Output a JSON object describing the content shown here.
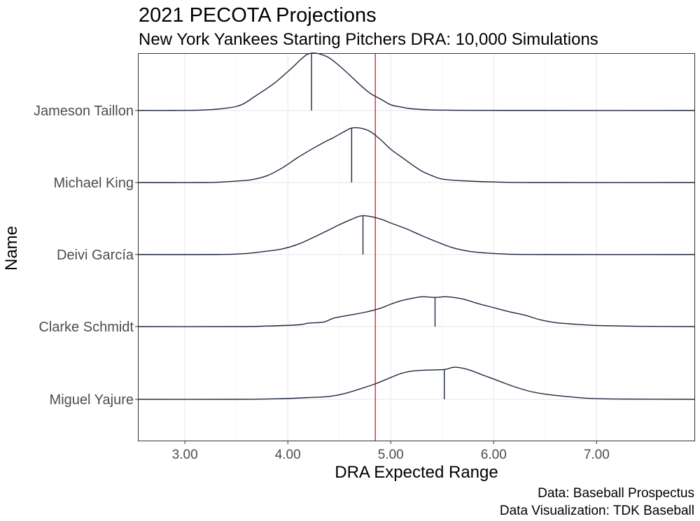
{
  "colors": {
    "density_line": "#1c2841",
    "reference_line": "#e0252b",
    "panel_border": "#333333",
    "grid_major": "#ebebeb",
    "grid_minor": "#f5f5f5",
    "tick_text": "#4d4d4d"
  },
  "chart_data": {
    "type": "ridgeline-density",
    "title": "2021 PECOTA Projections",
    "subtitle": "New York Yankees Starting Pitchers DRA: 10,000 Simulations",
    "xlabel": "DRA Expected Range",
    "ylabel": "Name",
    "xlim": [
      2.55,
      7.95
    ],
    "x_ticks": [
      3.0,
      4.0,
      5.0,
      6.0,
      7.0
    ],
    "x_tick_labels": [
      "3.00",
      "4.00",
      "5.00",
      "6.00",
      "7.00"
    ],
    "reference_line": {
      "x": 4.85,
      "color": "#e0252b"
    },
    "grid": true,
    "legend": "none",
    "caption": [
      "Data: Baseball Prospectus",
      "Data Visualization: TDK Baseball"
    ],
    "series": [
      {
        "name": "Jameson Taillon",
        "median": 4.23,
        "density": [
          [
            2.55,
            0
          ],
          [
            2.9,
            0
          ],
          [
            3.2,
            0.01
          ],
          [
            3.4,
            0.04
          ],
          [
            3.55,
            0.1
          ],
          [
            3.7,
            0.27
          ],
          [
            3.85,
            0.45
          ],
          [
            3.95,
            0.6
          ],
          [
            4.05,
            0.76
          ],
          [
            4.12,
            0.88
          ],
          [
            4.18,
            0.97
          ],
          [
            4.23,
            1.0
          ],
          [
            4.3,
            0.99
          ],
          [
            4.4,
            0.92
          ],
          [
            4.5,
            0.78
          ],
          [
            4.6,
            0.62
          ],
          [
            4.7,
            0.45
          ],
          [
            4.8,
            0.3
          ],
          [
            4.9,
            0.2
          ],
          [
            5.0,
            0.1
          ],
          [
            5.1,
            0.06
          ],
          [
            5.2,
            0.03
          ],
          [
            5.4,
            0.01
          ],
          [
            5.7,
            0.004
          ],
          [
            6.2,
            0
          ],
          [
            7.95,
            0
          ]
        ]
      },
      {
        "name": "Michael King",
        "median": 4.62,
        "density": [
          [
            2.55,
            0
          ],
          [
            3.2,
            0
          ],
          [
            3.45,
            0.02
          ],
          [
            3.65,
            0.05
          ],
          [
            3.8,
            0.12
          ],
          [
            3.95,
            0.26
          ],
          [
            4.1,
            0.44
          ],
          [
            4.25,
            0.6
          ],
          [
            4.35,
            0.7
          ],
          [
            4.45,
            0.79
          ],
          [
            4.55,
            0.89
          ],
          [
            4.62,
            0.95
          ],
          [
            4.7,
            0.95
          ],
          [
            4.8,
            0.89
          ],
          [
            4.9,
            0.75
          ],
          [
            5.0,
            0.58
          ],
          [
            5.1,
            0.45
          ],
          [
            5.2,
            0.32
          ],
          [
            5.3,
            0.2
          ],
          [
            5.4,
            0.12
          ],
          [
            5.5,
            0.06
          ],
          [
            5.7,
            0.03
          ],
          [
            6.0,
            0.01
          ],
          [
            6.4,
            0
          ],
          [
            7.95,
            0
          ]
        ]
      },
      {
        "name": "Deivi García",
        "median": 4.73,
        "density": [
          [
            2.55,
            0
          ],
          [
            3.3,
            0
          ],
          [
            3.6,
            0.02
          ],
          [
            3.8,
            0.06
          ],
          [
            3.95,
            0.1
          ],
          [
            4.1,
            0.18
          ],
          [
            4.25,
            0.3
          ],
          [
            4.4,
            0.43
          ],
          [
            4.5,
            0.52
          ],
          [
            4.6,
            0.6
          ],
          [
            4.7,
            0.67
          ],
          [
            4.78,
            0.67
          ],
          [
            4.9,
            0.62
          ],
          [
            5.0,
            0.55
          ],
          [
            5.15,
            0.45
          ],
          [
            5.3,
            0.33
          ],
          [
            5.45,
            0.22
          ],
          [
            5.6,
            0.12
          ],
          [
            5.75,
            0.06
          ],
          [
            5.9,
            0.03
          ],
          [
            6.1,
            0.01
          ],
          [
            6.5,
            0
          ],
          [
            7.95,
            0
          ]
        ]
      },
      {
        "name": "Clarke Schmidt",
        "median": 5.43,
        "density": [
          [
            2.55,
            0
          ],
          [
            3.5,
            0
          ],
          [
            3.8,
            0.01
          ],
          [
            4.1,
            0.03
          ],
          [
            4.2,
            0.06
          ],
          [
            4.35,
            0.08
          ],
          [
            4.45,
            0.15
          ],
          [
            4.6,
            0.2
          ],
          [
            4.75,
            0.25
          ],
          [
            4.9,
            0.32
          ],
          [
            5.0,
            0.39
          ],
          [
            5.1,
            0.45
          ],
          [
            5.2,
            0.49
          ],
          [
            5.3,
            0.52
          ],
          [
            5.43,
            0.51
          ],
          [
            5.55,
            0.52
          ],
          [
            5.7,
            0.48
          ],
          [
            5.85,
            0.4
          ],
          [
            6.0,
            0.33
          ],
          [
            6.15,
            0.26
          ],
          [
            6.3,
            0.2
          ],
          [
            6.45,
            0.12
          ],
          [
            6.6,
            0.07
          ],
          [
            6.8,
            0.04
          ],
          [
            7.0,
            0.02
          ],
          [
            7.4,
            0.005
          ],
          [
            7.95,
            0
          ]
        ]
      },
      {
        "name": "Miguel Yajure",
        "median": 5.52,
        "density": [
          [
            2.55,
            0
          ],
          [
            3.5,
            0
          ],
          [
            3.9,
            0.01
          ],
          [
            4.2,
            0.03
          ],
          [
            4.4,
            0.05
          ],
          [
            4.55,
            0.1
          ],
          [
            4.7,
            0.18
          ],
          [
            4.85,
            0.27
          ],
          [
            5.0,
            0.38
          ],
          [
            5.1,
            0.45
          ],
          [
            5.2,
            0.49
          ],
          [
            5.35,
            0.51
          ],
          [
            5.52,
            0.52
          ],
          [
            5.62,
            0.56
          ],
          [
            5.75,
            0.52
          ],
          [
            5.9,
            0.42
          ],
          [
            6.05,
            0.32
          ],
          [
            6.2,
            0.22
          ],
          [
            6.35,
            0.14
          ],
          [
            6.5,
            0.09
          ],
          [
            6.7,
            0.05
          ],
          [
            6.9,
            0.02
          ],
          [
            7.2,
            0.005
          ],
          [
            7.95,
            0
          ]
        ]
      }
    ]
  }
}
